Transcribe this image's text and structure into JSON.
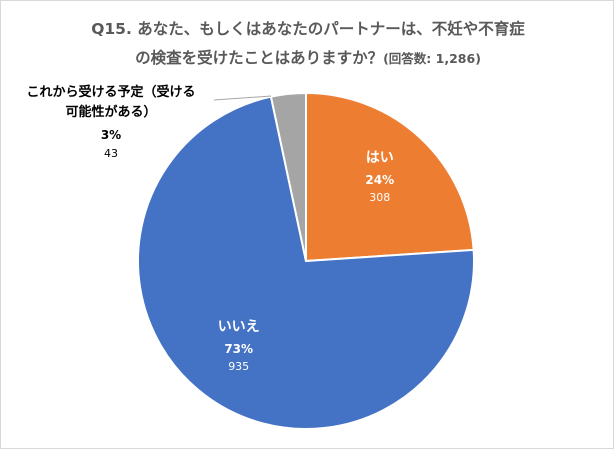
{
  "chart_data": {
    "type": "pie",
    "title_line1": "Q15. あなた、もしくはあなたのパートナーは、不妊や不育症",
    "title_line2": "の検査を受けたことはありますか？",
    "title_count": "(回答数: 1,286)",
    "slices": [
      {
        "label": "はい",
        "percent_label": "24%",
        "count_label": "308",
        "value": 308,
        "color": "#ed7d31",
        "text_color": "#ffffff"
      },
      {
        "label": "いいえ",
        "percent_label": "73%",
        "count_label": "935",
        "value": 935,
        "color": "#4472c4",
        "text_color": "#ffffff"
      },
      {
        "label": "これから受ける予定（受ける",
        "label_line2": "可能性がある）",
        "percent_label": "3%",
        "count_label": "43",
        "value": 43,
        "color": "#a5a5a5",
        "text_color": "#000000"
      }
    ],
    "start_angle_deg": 0,
    "direction": "clockwise"
  }
}
